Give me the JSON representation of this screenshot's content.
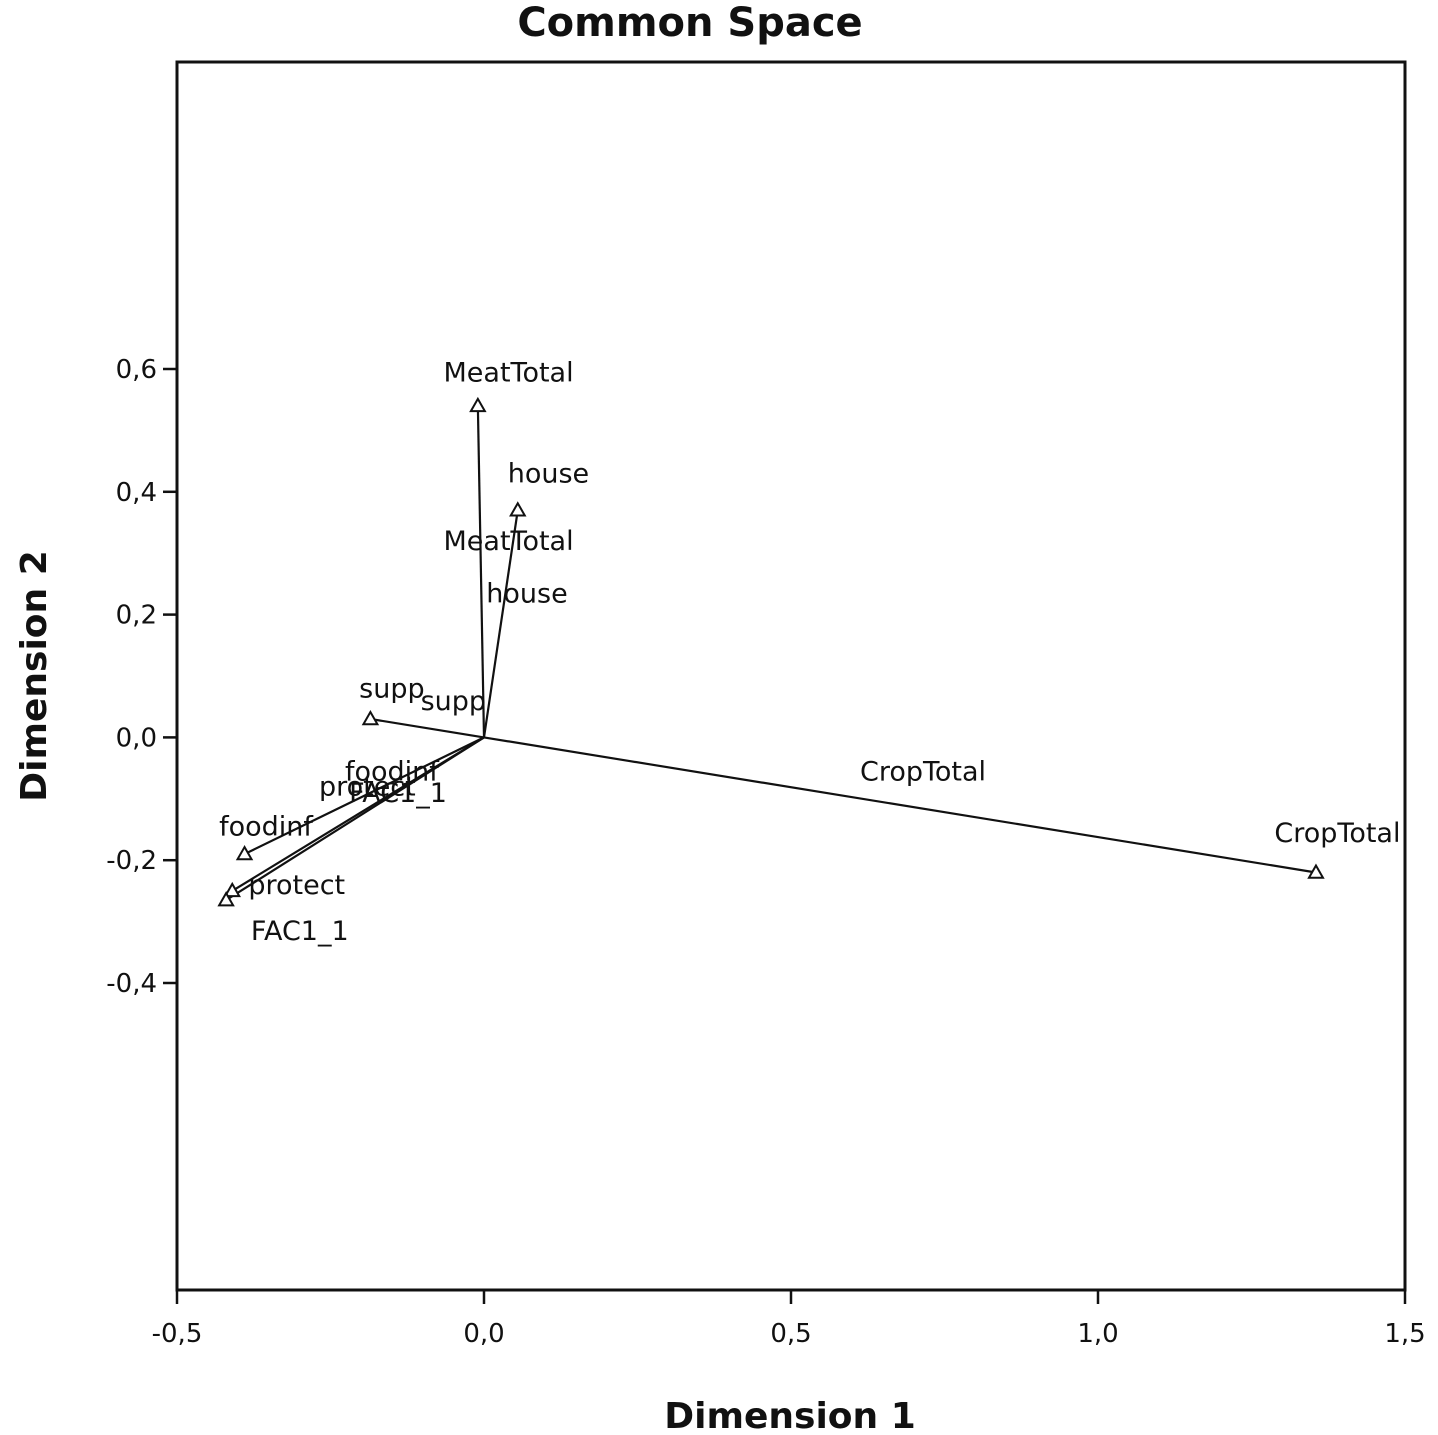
{
  "chart_data": {
    "type": "scatter",
    "title": "Common Space",
    "xlabel": "Dimension 1",
    "ylabel": "Dimension 2",
    "xlim": [
      -0.5,
      1.5
    ],
    "ylim": [
      -0.9,
      1.1
    ],
    "x_ticks": [
      {
        "value": -0.5,
        "label": "-0,5"
      },
      {
        "value": 0.0,
        "label": "0,0"
      },
      {
        "value": 0.5,
        "label": "0,5"
      },
      {
        "value": 1.0,
        "label": "1,0"
      },
      {
        "value": 1.5,
        "label": "1,5"
      }
    ],
    "y_ticks": [
      {
        "value": 0.6,
        "label": "0,6"
      },
      {
        "value": 0.4,
        "label": "0,4"
      },
      {
        "value": 0.2,
        "label": "0,2"
      },
      {
        "value": 0.0,
        "label": "0,0"
      },
      {
        "value": -0.2,
        "label": "-0,2"
      },
      {
        "value": -0.4,
        "label": "-0,4"
      }
    ],
    "origin": [
      0.0,
      0.0
    ],
    "vectors": [
      {
        "name": "MeatTotal",
        "x": -0.01,
        "y": 0.54
      },
      {
        "name": "house",
        "x": 0.055,
        "y": 0.37
      },
      {
        "name": "supp",
        "x": -0.185,
        "y": 0.03
      },
      {
        "name": "foodinf",
        "x": -0.39,
        "y": -0.19
      },
      {
        "name": "protect",
        "x": -0.41,
        "y": -0.25
      },
      {
        "name": "FAC1_1",
        "x": -0.42,
        "y": -0.265
      },
      {
        "name": "CropTotal",
        "x": 1.355,
        "y": -0.22
      }
    ],
    "labels": [
      {
        "text": "MeatTotal",
        "x": 0.04,
        "y": 0.58,
        "anchor": "middle"
      },
      {
        "text": "house",
        "x": 0.105,
        "y": 0.415,
        "anchor": "middle"
      },
      {
        "text": "MeatTotal",
        "x": 0.04,
        "y": 0.305,
        "anchor": "middle"
      },
      {
        "text": "house",
        "x": 0.07,
        "y": 0.22,
        "anchor": "middle"
      },
      {
        "text": "supp",
        "x": -0.15,
        "y": 0.065,
        "anchor": "middle"
      },
      {
        "text": "supp",
        "x": -0.05,
        "y": 0.045,
        "anchor": "middle"
      },
      {
        "text": "foodinf",
        "x": -0.15,
        "y": -0.07,
        "anchor": "middle"
      },
      {
        "text": "protect",
        "x": -0.19,
        "y": -0.095,
        "anchor": "middle"
      },
      {
        "text": "FAC1_1",
        "x": -0.14,
        "y": -0.105,
        "anchor": "middle"
      },
      {
        "text": "foodinf",
        "x": -0.355,
        "y": -0.16,
        "anchor": "middle"
      },
      {
        "text": "protect",
        "x": -0.305,
        "y": -0.255,
        "anchor": "middle"
      },
      {
        "text": "FAC1_1",
        "x": -0.3,
        "y": -0.33,
        "anchor": "middle"
      },
      {
        "text": "CropTotal",
        "x": 0.715,
        "y": -0.07,
        "anchor": "middle"
      },
      {
        "text": "CropTotal",
        "x": 1.39,
        "y": -0.17,
        "anchor": "middle"
      }
    ],
    "grid": false,
    "legend": "none",
    "colors": {
      "line": "#111111",
      "marker_fill": "#ffffff",
      "background": "#ffffff"
    }
  }
}
